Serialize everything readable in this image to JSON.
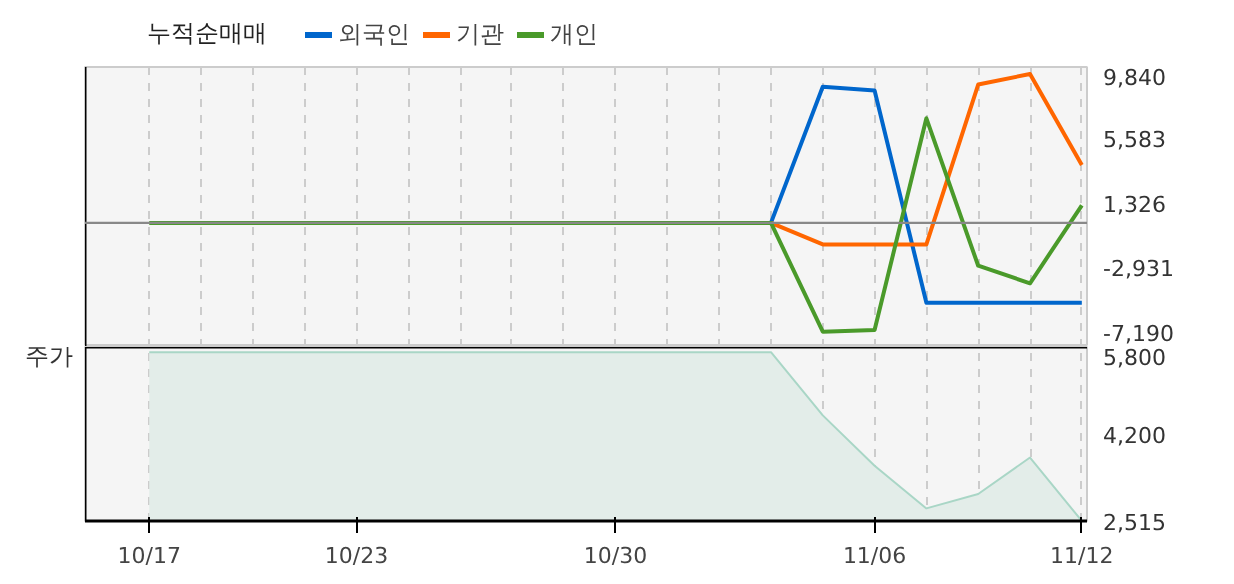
{
  "chart_data": [
    {
      "type": "line",
      "title": "누적순매매",
      "categories": [
        null,
        null,
        null,
        null,
        null,
        null,
        null,
        null,
        null,
        null,
        null,
        null,
        null,
        null,
        null,
        null,
        null,
        null,
        null
      ],
      "series": [
        {
          "name": "외국인",
          "color": "#0066cc",
          "values": [
            null,
            null,
            null,
            null,
            null,
            null,
            null,
            null,
            null,
            null,
            null,
            null,
            0,
            9000,
            8750,
            -5280,
            -5280,
            -5280,
            -5280
          ]
        },
        {
          "name": "기관",
          "color": "#ff6600",
          "values": [
            null,
            null,
            null,
            null,
            null,
            null,
            null,
            null,
            null,
            null,
            null,
            null,
            0,
            -1420,
            -1420,
            -1420,
            9140,
            9840,
            3820
          ]
        },
        {
          "name": "개인",
          "color": "#4a9a2a",
          "values": [
            0,
            0,
            0,
            0,
            0,
            0,
            0,
            0,
            0,
            0,
            0,
            0,
            0,
            -7190,
            -7080,
            6910,
            -2830,
            -3990,
            1160
          ]
        }
      ],
      "ylim": [
        -8200,
        10300
      ],
      "yticks": [
        {
          "value": 9840,
          "label": "9,840"
        },
        {
          "value": 5583,
          "label": "5,583"
        },
        {
          "value": 1326,
          "label": "1,326"
        },
        {
          "value": -2931,
          "label": "-2,931"
        },
        {
          "value": -7190,
          "label": "-7,190"
        }
      ],
      "ref_lines": [
        {
          "axis": "y",
          "value": 0,
          "color": "#888888"
        }
      ],
      "grid": "x",
      "legend": "top",
      "tick_labels": "y"
    },
    {
      "type": "area",
      "ylabel": "주가",
      "categories": [
        "10/17",
        null,
        null,
        null,
        "10/23",
        null,
        null,
        null,
        null,
        "10/30",
        null,
        null,
        null,
        null,
        "11/06",
        null,
        null,
        null,
        "11/12"
      ],
      "series": [
        {
          "color": "#a9d6c6",
          "values": [
            5800,
            5800,
            5800,
            5800,
            5800,
            5800,
            5800,
            5800,
            5800,
            5800,
            5800,
            5800,
            5800,
            4570,
            3590,
            2760,
            3040,
            3750,
            2515
          ]
        }
      ],
      "ylim": [
        2515,
        5900
      ],
      "yticks": [
        {
          "value": 5800,
          "label": "5,800"
        },
        {
          "value": 4200,
          "label": "4,200"
        },
        {
          "value": 2515,
          "label": "2,515"
        }
      ],
      "grid": "x"
    }
  ]
}
